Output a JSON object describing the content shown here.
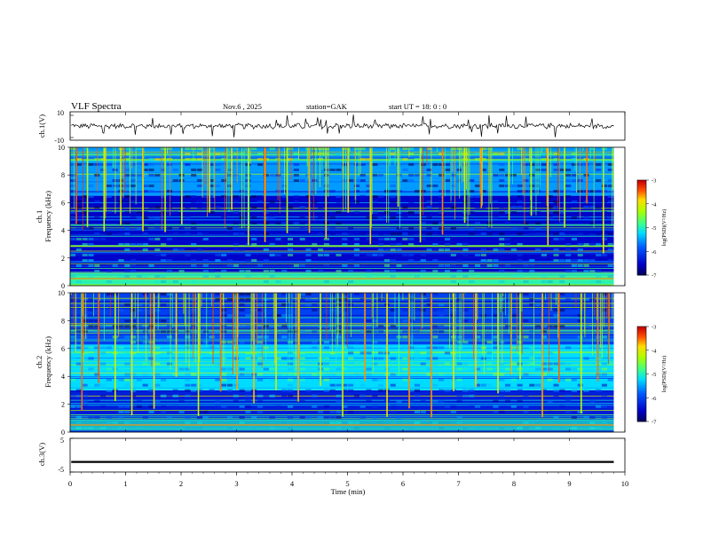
{
  "header": {
    "title": "VLF Spectra",
    "date": "Nov.6 , 2025",
    "station": "station=GAK",
    "start": "start UT = 18: 0 : 0"
  },
  "chart_data": [
    {
      "type": "line",
      "ylabel": "ch.1(V)",
      "ylim": [
        -10,
        10
      ],
      "yticks": [
        "10",
        "-10"
      ],
      "xlim": [
        0,
        10
      ],
      "description_values": {
        "baseline": 0,
        "typical_amplitude": 2,
        "spikes_max": 8
      }
    },
    {
      "type": "heatmap",
      "ylabel": "ch.1\nFrequency (kHz)",
      "ylim": [
        0,
        10
      ],
      "yticks": [
        "0",
        "2",
        "4",
        "6",
        "8",
        "10"
      ],
      "xlim": [
        0,
        9.8
      ],
      "colorbar": {
        "label": "log(PSD)(V²/Hz)",
        "range": [
          -7,
          -3
        ],
        "ticks": [
          "-3",
          "-4",
          "-5",
          "-6",
          "-7"
        ]
      },
      "bands_khz": [
        {
          "from": 0,
          "to": 1,
          "level": -4.5
        },
        {
          "from": 1,
          "to": 6.5,
          "level": -6.5
        },
        {
          "from": 6.5,
          "to": 10,
          "level": -5.5
        }
      ],
      "sferics_min": [
        0.1,
        0.3,
        0.6,
        0.9,
        1.3,
        1.7,
        2.0,
        2.5,
        2.9,
        3.2,
        3.5,
        3.9,
        4.3,
        4.6,
        5.0,
        5.4,
        5.9,
        6.3,
        6.7,
        7.1,
        7.4,
        7.9,
        8.3,
        8.6,
        8.9,
        9.3,
        9.6
      ]
    },
    {
      "type": "heatmap",
      "ylabel": "ch.2\nFrequency (kHz)",
      "ylim": [
        0,
        10
      ],
      "yticks": [
        "0",
        "2",
        "4",
        "6",
        "8",
        "10"
      ],
      "xlim": [
        0,
        9.8
      ],
      "colorbar": {
        "label": "log(PSD)(V²/Hz)",
        "range": [
          -7,
          -3
        ],
        "ticks": [
          "-3",
          "-4",
          "-5",
          "-6",
          "-7"
        ]
      },
      "bands_khz": [
        {
          "from": 0,
          "to": 3,
          "level": -6.3
        },
        {
          "from": 3,
          "to": 6.3,
          "level": -5.2
        },
        {
          "from": 6.3,
          "to": 10,
          "level": -6.0
        }
      ],
      "sferics_min": [
        0.2,
        0.5,
        0.8,
        1.1,
        1.5,
        1.9,
        2.3,
        2.7,
        3.0,
        3.3,
        3.7,
        4.1,
        4.5,
        4.9,
        5.3,
        5.7,
        6.1,
        6.5,
        6.9,
        7.3,
        7.7,
        8.1,
        8.5,
        8.8,
        9.2,
        9.5
      ]
    },
    {
      "type": "line",
      "ylabel": "ch.3(V)",
      "ylim": [
        -5,
        5
      ],
      "yticks": [
        "5",
        "-5"
      ],
      "xlim": [
        0,
        10
      ],
      "xlabel": "Time (min)",
      "xticks": [
        "0",
        "1",
        "2",
        "3",
        "4",
        "5",
        "6",
        "7",
        "8",
        "9",
        "10"
      ],
      "description_values": {
        "level": -2
      }
    }
  ]
}
